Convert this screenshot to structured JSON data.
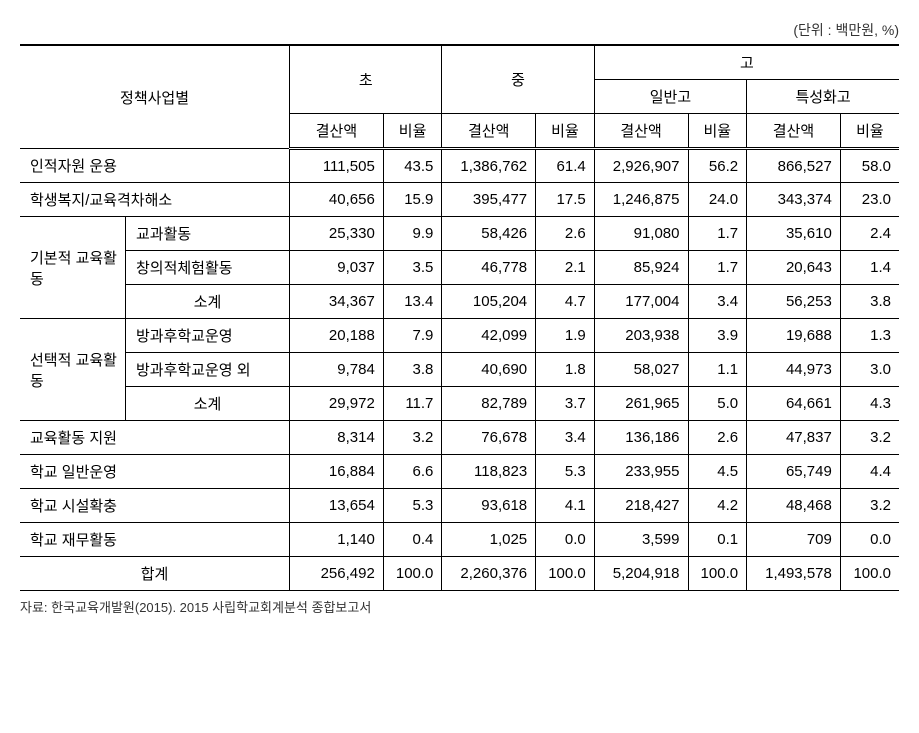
{
  "unit_label": "(단위 : 백만원, %)",
  "headers": {
    "policy": "정책사업별",
    "elem": "초",
    "middle": "중",
    "high": "고",
    "high_general": "일반고",
    "high_special": "특성화고",
    "amount": "결산액",
    "ratio": "비율"
  },
  "rows": {
    "r1": {
      "label": "인적자원 운용",
      "e_a": "111,505",
      "e_r": "43.5",
      "m_a": "1,386,762",
      "m_r": "61.4",
      "hg_a": "2,926,907",
      "hg_r": "56.2",
      "hs_a": "866,527",
      "hs_r": "58.0"
    },
    "r2": {
      "label": "학생복지/교육격차해소",
      "e_a": "40,656",
      "e_r": "15.9",
      "m_a": "395,477",
      "m_r": "17.5",
      "hg_a": "1,246,875",
      "hg_r": "24.0",
      "hs_a": "343,374",
      "hs_r": "23.0"
    },
    "group1": {
      "label": "기본적 교육활동",
      "sub1": {
        "label": "교과활동",
        "e_a": "25,330",
        "e_r": "9.9",
        "m_a": "58,426",
        "m_r": "2.6",
        "hg_a": "91,080",
        "hg_r": "1.7",
        "hs_a": "35,610",
        "hs_r": "2.4"
      },
      "sub2": {
        "label": "창의적체험활동",
        "e_a": "9,037",
        "e_r": "3.5",
        "m_a": "46,778",
        "m_r": "2.1",
        "hg_a": "85,924",
        "hg_r": "1.7",
        "hs_a": "20,643",
        "hs_r": "1.4"
      },
      "subtotal": {
        "label": "소계",
        "e_a": "34,367",
        "e_r": "13.4",
        "m_a": "105,204",
        "m_r": "4.7",
        "hg_a": "177,004",
        "hg_r": "3.4",
        "hs_a": "56,253",
        "hs_r": "3.8"
      }
    },
    "group2": {
      "label": "선택적 교육활동",
      "sub1": {
        "label": "방과후학교운영",
        "e_a": "20,188",
        "e_r": "7.9",
        "m_a": "42,099",
        "m_r": "1.9",
        "hg_a": "203,938",
        "hg_r": "3.9",
        "hs_a": "19,688",
        "hs_r": "1.3"
      },
      "sub2": {
        "label": "방과후학교운영 외",
        "e_a": "9,784",
        "e_r": "3.8",
        "m_a": "40,690",
        "m_r": "1.8",
        "hg_a": "58,027",
        "hg_r": "1.1",
        "hs_a": "44,973",
        "hs_r": "3.0"
      },
      "subtotal": {
        "label": "소계",
        "e_a": "29,972",
        "e_r": "11.7",
        "m_a": "82,789",
        "m_r": "3.7",
        "hg_a": "261,965",
        "hg_r": "5.0",
        "hs_a": "64,661",
        "hs_r": "4.3"
      }
    },
    "r3": {
      "label": "교육활동 지원",
      "e_a": "8,314",
      "e_r": "3.2",
      "m_a": "76,678",
      "m_r": "3.4",
      "hg_a": "136,186",
      "hg_r": "2.6",
      "hs_a": "47,837",
      "hs_r": "3.2"
    },
    "r4": {
      "label": "학교 일반운영",
      "e_a": "16,884",
      "e_r": "6.6",
      "m_a": "118,823",
      "m_r": "5.3",
      "hg_a": "233,955",
      "hg_r": "4.5",
      "hs_a": "65,749",
      "hs_r": "4.4"
    },
    "r5": {
      "label": "학교 시설확충",
      "e_a": "13,654",
      "e_r": "5.3",
      "m_a": "93,618",
      "m_r": "4.1",
      "hg_a": "218,427",
      "hg_r": "4.2",
      "hs_a": "48,468",
      "hs_r": "3.2"
    },
    "r6": {
      "label": "학교 재무활동",
      "e_a": "1,140",
      "e_r": "0.4",
      "m_a": "1,025",
      "m_r": "0.0",
      "hg_a": "3,599",
      "hg_r": "0.1",
      "hs_a": "709",
      "hs_r": "0.0"
    },
    "total": {
      "label": "합계",
      "e_a": "256,492",
      "e_r": "100.0",
      "m_a": "2,260,376",
      "m_r": "100.0",
      "hg_a": "5,204,918",
      "hg_r": "100.0",
      "hs_a": "1,493,578",
      "hs_r": "100.0"
    }
  },
  "footnote": "자료: 한국교육개발원(2015). 2015 사립학교회계분석 종합보고서"
}
